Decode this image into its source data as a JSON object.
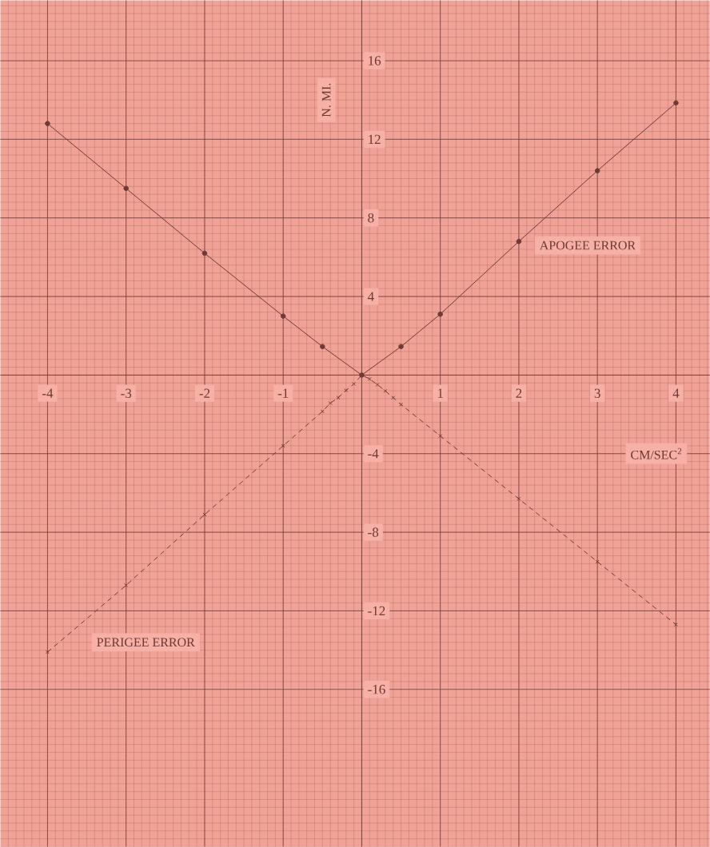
{
  "chart_data": {
    "type": "line",
    "xlabel": "CM/SEC$^{2}$",
    "ylabel": "N. MI.",
    "xlim": [
      -4.6,
      4.43
    ],
    "ylim": [
      -24,
      19.07
    ],
    "xticks": [
      -4,
      -3,
      -2,
      -1,
      1,
      2,
      3,
      4
    ],
    "yticks": [
      -16,
      -12,
      -8,
      -4,
      4,
      8,
      12,
      16
    ],
    "grid": true,
    "legend": false,
    "series": [
      {
        "name": "APOGEE ERROR",
        "color": "#6e3a36",
        "marker": "circle",
        "line_style": "solid",
        "x": [
          -4,
          -3,
          -2,
          -1,
          -0.5,
          0,
          0.5,
          1,
          2,
          3,
          4
        ],
        "values": [
          12.8,
          9.5,
          6.2,
          3.0,
          1.45,
          0,
          1.45,
          3.1,
          6.8,
          10.4,
          13.85
        ]
      },
      {
        "name": "PERIGEE ERROR",
        "color": "#6e3a36",
        "marker": "cross",
        "line_style": "dashed",
        "x": [
          -4,
          -3,
          -2,
          -1,
          -0.5,
          -0.4,
          -0.3,
          -0.2,
          -0.1,
          0,
          0.1,
          0.2,
          0.3,
          0.4,
          0.5,
          1,
          2,
          3,
          4
        ],
        "values": [
          -14.1,
          -10.7,
          -7.1,
          -3.6,
          -1.85,
          -1.43,
          -1.15,
          -0.78,
          -0.45,
          0,
          -0.2,
          -0.49,
          -0.81,
          -1.15,
          -1.5,
          -3.1,
          -6.3,
          -9.5,
          -12.7
        ]
      }
    ]
  }
}
